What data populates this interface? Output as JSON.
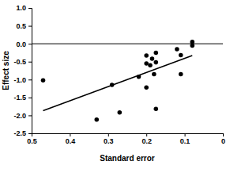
{
  "chart_data": {
    "type": "scatter",
    "x_label": "Standard error",
    "y_label": "Effect size",
    "x": [
      0.47,
      0.33,
      0.29,
      0.27,
      0.22,
      0.2,
      0.2,
      0.2,
      0.19,
      0.185,
      0.18,
      0.175,
      0.175,
      0.175,
      0.12,
      0.11,
      0.11,
      0.08,
      0.08
    ],
    "values": [
      -1.02,
      -2.12,
      -1.15,
      -1.92,
      -0.92,
      -0.33,
      -0.55,
      -1.22,
      -0.6,
      -0.42,
      -0.85,
      -0.25,
      -0.52,
      -1.82,
      -0.15,
      -0.32,
      -0.85,
      0.05,
      -0.05
    ],
    "color": "#000000",
    "marker": "circle",
    "xlim": [
      0.5,
      0
    ],
    "xticks": [
      0.5,
      0.4,
      0.3,
      0.2,
      0.1,
      0
    ],
    "ylim": [
      -2.5,
      1
    ],
    "yticks": [
      {
        "value": 1,
        "label": "1.0"
      },
      0.5,
      {
        "value": 0,
        "label": "0.0"
      },
      -0.5,
      {
        "value": -1,
        "label": "-1.0"
      },
      -1.5,
      {
        "value": -2,
        "label": "-2.0"
      },
      -2.5
    ],
    "hline": 0,
    "trend_line": {
      "x": [
        0.47,
        0.08
      ],
      "y": [
        -1.87,
        -0.33
      ]
    },
    "grid": false
  }
}
